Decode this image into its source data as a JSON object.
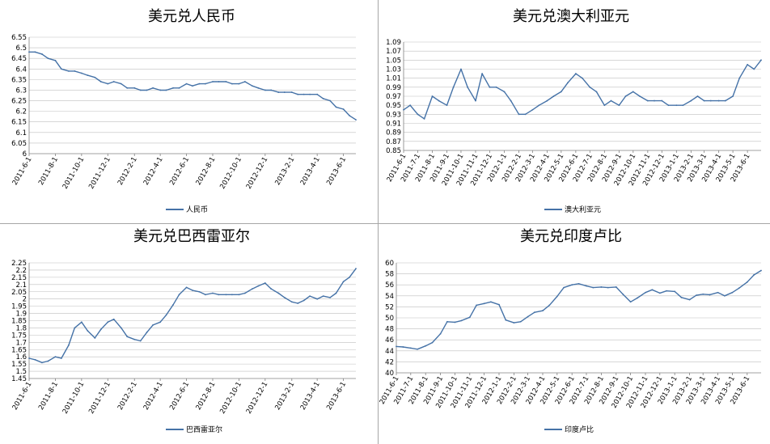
{
  "chart_data": [
    {
      "type": "line",
      "title": "美元兑人民币",
      "series": [
        {
          "name": "人民币",
          "x": [
            "2011-6-1",
            "2011-6-15",
            "2011-7-1",
            "2011-7-15",
            "2011-8-1",
            "2011-8-15",
            "2011-9-1",
            "2011-9-15",
            "2011-10-1",
            "2011-10-15",
            "2011-11-1",
            "2011-11-15",
            "2011-12-1",
            "2011-12-15",
            "2012-1-1",
            "2012-1-15",
            "2012-2-1",
            "2012-2-15",
            "2012-3-1",
            "2012-3-15",
            "2012-4-1",
            "2012-4-15",
            "2012-5-1",
            "2012-5-15",
            "2012-6-1",
            "2012-6-15",
            "2012-7-1",
            "2012-7-15",
            "2012-8-1",
            "2012-8-15",
            "2012-9-1",
            "2012-9-15",
            "2012-10-1",
            "2012-10-15",
            "2012-11-1",
            "2012-11-15",
            "2012-12-1",
            "2012-12-15",
            "2013-1-1",
            "2013-1-15",
            "2013-2-1",
            "2013-2-15",
            "2013-3-1",
            "2013-3-15",
            "2013-4-1",
            "2013-4-15",
            "2013-5-1",
            "2013-5-15",
            "2013-6-1",
            "2013-6-15",
            "2013-6-30"
          ],
          "values": [
            6.48,
            6.48,
            6.47,
            6.45,
            6.44,
            6.4,
            6.39,
            6.39,
            6.38,
            6.37,
            6.36,
            6.34,
            6.33,
            6.34,
            6.33,
            6.31,
            6.31,
            6.3,
            6.3,
            6.31,
            6.3,
            6.3,
            6.31,
            6.31,
            6.33,
            6.32,
            6.33,
            6.33,
            6.34,
            6.34,
            6.34,
            6.33,
            6.33,
            6.34,
            6.32,
            6.31,
            6.3,
            6.3,
            6.29,
            6.29,
            6.29,
            6.28,
            6.28,
            6.28,
            6.28,
            6.26,
            6.25,
            6.22,
            6.21,
            6.18,
            6.16
          ]
        }
      ],
      "categories": [
        "2011-6-1",
        "2011-8-1",
        "2011-10-1",
        "2011-12-1",
        "2012-2-1",
        "2012-4-1",
        "2012-6-1",
        "2012-8-1",
        "2012-10-1",
        "2012-12-1",
        "2013-2-1",
        "2013-4-1",
        "2013-6-1"
      ],
      "yticks": [
        "6",
        "6.05",
        "6.1",
        "6.15",
        "6.2",
        "6.25",
        "6.3",
        "6.35",
        "6.4",
        "6.45",
        "6.5",
        "6.55"
      ],
      "ylim": [
        6,
        6.55
      ]
    },
    {
      "type": "line",
      "title": "美元兑澳大利亚元",
      "series": [
        {
          "name": "澳大利亚元",
          "x": [
            "2011-6-1",
            "2011-6-15",
            "2011-7-1",
            "2011-7-15",
            "2011-8-1",
            "2011-8-15",
            "2011-9-1",
            "2011-9-15",
            "2011-10-1",
            "2011-10-15",
            "2011-11-1",
            "2011-11-15",
            "2011-12-1",
            "2011-12-15",
            "2012-1-1",
            "2012-1-15",
            "2012-2-1",
            "2012-2-15",
            "2012-3-1",
            "2012-3-15",
            "2012-4-1",
            "2012-4-15",
            "2012-5-1",
            "2012-5-15",
            "2012-6-1",
            "2012-6-15",
            "2012-7-1",
            "2012-7-15",
            "2012-8-1",
            "2012-8-15",
            "2012-9-1",
            "2012-9-15",
            "2012-10-1",
            "2012-10-15",
            "2012-11-1",
            "2012-11-15",
            "2012-12-1",
            "2012-12-15",
            "2013-1-1",
            "2013-1-15",
            "2013-2-1",
            "2013-2-15",
            "2013-3-1",
            "2013-3-15",
            "2013-4-1",
            "2013-4-15",
            "2013-5-1",
            "2013-5-15",
            "2013-6-1",
            "2013-6-15",
            "2013-6-30"
          ],
          "values": [
            0.94,
            0.95,
            0.93,
            0.92,
            0.97,
            0.96,
            0.95,
            0.99,
            1.03,
            0.99,
            0.96,
            1.02,
            0.99,
            0.99,
            0.98,
            0.96,
            0.93,
            0.93,
            0.94,
            0.95,
            0.96,
            0.97,
            0.98,
            1.0,
            1.02,
            1.01,
            0.99,
            0.98,
            0.95,
            0.96,
            0.95,
            0.97,
            0.98,
            0.97,
            0.96,
            0.96,
            0.96,
            0.95,
            0.95,
            0.95,
            0.96,
            0.97,
            0.96,
            0.96,
            0.96,
            0.96,
            0.97,
            1.01,
            1.04,
            1.03,
            1.05
          ]
        }
      ],
      "categories": [
        "2011-6-1",
        "2011-7-1",
        "2011-8-1",
        "2011-9-1",
        "2011-10-1",
        "2011-11-1",
        "2011-12-1",
        "2012-1-1",
        "2012-2-1",
        "2012-3-1",
        "2012-4-1",
        "2012-5-1",
        "2012-6-1",
        "2012-7-1",
        "2012-8-1",
        "2012-9-1",
        "2012-10-1",
        "2012-11-1",
        "2012-12-1",
        "2013-1-1",
        "2013-2-1",
        "2013-3-1",
        "2013-4-1",
        "2013-5-1",
        "2013-6-1"
      ],
      "yticks": [
        "0.85",
        "0.87",
        "0.89",
        "0.91",
        "0.93",
        "0.95",
        "0.97",
        "0.99",
        "1.01",
        "1.03",
        "1.05",
        "1.07",
        "1.09"
      ],
      "ylim": [
        0.85,
        1.09
      ]
    },
    {
      "type": "line",
      "title": "美元兑巴西雷亚尔",
      "series": [
        {
          "name": "巴西雷亚尔",
          "x": [
            "2011-6-1",
            "2011-6-15",
            "2011-7-1",
            "2011-7-15",
            "2011-8-1",
            "2011-8-15",
            "2011-9-1",
            "2011-9-15",
            "2011-10-1",
            "2011-10-15",
            "2011-11-1",
            "2011-11-15",
            "2011-12-1",
            "2011-12-15",
            "2012-1-1",
            "2012-1-15",
            "2012-2-1",
            "2012-2-15",
            "2012-3-1",
            "2012-3-15",
            "2012-4-1",
            "2012-4-15",
            "2012-5-1",
            "2012-5-15",
            "2012-6-1",
            "2012-6-15",
            "2012-7-1",
            "2012-7-15",
            "2012-8-1",
            "2012-8-15",
            "2012-9-1",
            "2012-9-15",
            "2012-10-1",
            "2012-10-15",
            "2012-11-1",
            "2012-11-15",
            "2012-12-1",
            "2012-12-15",
            "2013-1-1",
            "2013-1-15",
            "2013-2-1",
            "2013-2-15",
            "2013-3-1",
            "2013-3-15",
            "2013-4-1",
            "2013-4-15",
            "2013-5-1",
            "2013-5-15",
            "2013-6-1",
            "2013-6-15",
            "2013-6-30"
          ],
          "values": [
            1.59,
            1.58,
            1.56,
            1.57,
            1.6,
            1.59,
            1.68,
            1.8,
            1.84,
            1.78,
            1.73,
            1.79,
            1.84,
            1.86,
            1.8,
            1.74,
            1.72,
            1.71,
            1.77,
            1.82,
            1.84,
            1.89,
            1.96,
            2.03,
            2.08,
            2.06,
            2.05,
            2.03,
            2.04,
            2.03,
            2.03,
            2.03,
            2.03,
            2.04,
            2.07,
            2.09,
            2.11,
            2.07,
            2.04,
            2.01,
            1.98,
            1.97,
            1.99,
            2.02,
            2.0,
            2.02,
            2.01,
            2.04,
            2.12,
            2.15,
            2.21
          ]
        }
      ],
      "categories": [
        "2011-6-1",
        "2011-8-1",
        "2011-10-1",
        "2011-12-1",
        "2012-2-1",
        "2012-4-1",
        "2012-6-1",
        "2012-8-1",
        "2012-10-1",
        "2012-12-1",
        "2013-2-1",
        "2013-4-1",
        "2013-6-1"
      ],
      "yticks": [
        "1.45",
        "1.5",
        "1.55",
        "1.6",
        "1.65",
        "1.7",
        "1.75",
        "1.8",
        "1.85",
        "1.9",
        "1.95",
        "2",
        "2.05",
        "2.1",
        "2.15",
        "2.2",
        "2.25"
      ],
      "ylim": [
        1.45,
        2.25
      ]
    },
    {
      "type": "line",
      "title": "美元兑印度卢比",
      "series": [
        {
          "name": "印度卢比",
          "x": [
            "2011-6-1",
            "2011-6-15",
            "2011-7-1",
            "2011-7-15",
            "2011-8-1",
            "2011-8-15",
            "2011-9-1",
            "2011-9-15",
            "2011-10-1",
            "2011-10-15",
            "2011-11-1",
            "2011-11-15",
            "2011-12-1",
            "2011-12-15",
            "2012-1-1",
            "2012-1-15",
            "2012-2-1",
            "2012-2-15",
            "2012-3-1",
            "2012-3-15",
            "2012-4-1",
            "2012-4-15",
            "2012-5-1",
            "2012-5-15",
            "2012-6-1",
            "2012-6-15",
            "2012-7-1",
            "2012-7-15",
            "2012-8-1",
            "2012-8-15",
            "2012-9-1",
            "2012-9-15",
            "2012-10-1",
            "2012-10-15",
            "2012-11-1",
            "2012-11-15",
            "2012-12-1",
            "2012-12-15",
            "2013-1-1",
            "2013-1-15",
            "2013-2-1",
            "2013-2-15",
            "2013-3-1",
            "2013-3-15",
            "2013-4-1",
            "2013-4-15",
            "2013-5-1",
            "2013-5-15",
            "2013-6-1",
            "2013-6-15",
            "2013-6-30"
          ],
          "values": [
            44.8,
            44.7,
            44.5,
            44.3,
            44.9,
            45.5,
            47.1,
            49.3,
            49.2,
            49.5,
            50.1,
            52.3,
            52.6,
            52.9,
            52.4,
            49.6,
            49.1,
            49.3,
            50.2,
            51.0,
            51.3,
            52.3,
            53.9,
            55.5,
            56.0,
            56.2,
            55.8,
            55.5,
            55.6,
            55.5,
            55.6,
            54.3,
            52.9,
            53.6,
            54.6,
            55.1,
            54.5,
            54.9,
            54.8,
            53.7,
            53.3,
            54.1,
            54.3,
            54.2,
            54.6,
            54.0,
            54.6,
            55.4,
            56.5,
            57.8,
            58.6
          ]
        }
      ],
      "categories": [
        "2011-6-1",
        "2011-7-1",
        "2011-8-1",
        "2011-9-1",
        "2011-10-1",
        "2011-11-1",
        "2011-12-1",
        "2012-1-1",
        "2012-2-1",
        "2012-3-1",
        "2012-4-1",
        "2012-5-1",
        "2012-6-1",
        "2012-7-1",
        "2012-8-1",
        "2012-9-1",
        "2012-10-1",
        "2012-11-1",
        "2012-12-1",
        "2013-1-1",
        "2013-2-1",
        "2013-3-1",
        "2013-4-1",
        "2013-5-1",
        "2013-6-1"
      ],
      "yticks": [
        "40",
        "42",
        "44",
        "46",
        "48",
        "50",
        "52",
        "54",
        "56",
        "58",
        "60"
      ],
      "ylim": [
        40,
        60
      ]
    }
  ],
  "colors": {
    "series": "#4572a7",
    "grid": "#bfbfbf",
    "divider": "#a6a6a6"
  }
}
